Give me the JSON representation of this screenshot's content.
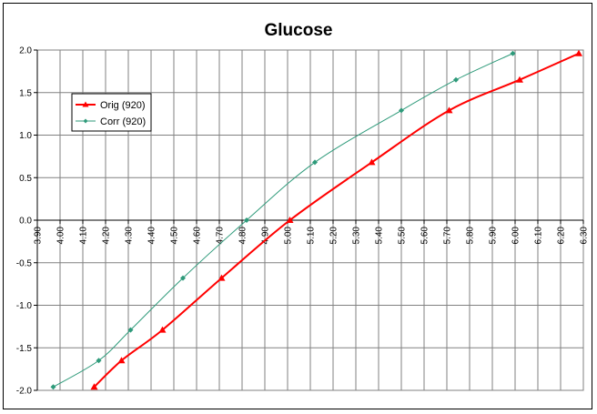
{
  "chart_data": {
    "type": "line",
    "title": "Glucose",
    "xlabel": "",
    "ylabel": "",
    "xlim": [
      3.9,
      6.3
    ],
    "ylim": [
      -2.0,
      2.0
    ],
    "x_ticks": [
      "3.90",
      "4.00",
      "4.10",
      "4.20",
      "4.30",
      "4.40",
      "4.50",
      "4.60",
      "4.70",
      "4.80",
      "4.90",
      "5.00",
      "5.10",
      "5.20",
      "5.30",
      "5.40",
      "5.50",
      "5.60",
      "5.70",
      "5.80",
      "5.90",
      "6.00",
      "6.10",
      "6.20",
      "6.30"
    ],
    "y_ticks": [
      "2.0",
      "1.5",
      "1.0",
      "0.5",
      "0.0",
      "-0.5",
      "-1.0",
      "-1.5",
      "-2.0"
    ],
    "grid": true,
    "legend_position": "left",
    "series": [
      {
        "name": "Orig (920)",
        "color": "#ff0000",
        "marker": "triangle",
        "points": [
          {
            "x": 4.15,
            "y": -1.96
          },
          {
            "x": 4.27,
            "y": -1.65
          },
          {
            "x": 4.45,
            "y": -1.29
          },
          {
            "x": 4.71,
            "y": -0.68
          },
          {
            "x": 5.01,
            "y": 0.0
          },
          {
            "x": 5.37,
            "y": 0.68
          },
          {
            "x": 5.71,
            "y": 1.29
          },
          {
            "x": 6.02,
            "y": 1.65
          },
          {
            "x": 6.28,
            "y": 1.96
          }
        ]
      },
      {
        "name": "Corr (920)",
        "color": "#2e9a7a",
        "marker": "diamond",
        "points": [
          {
            "x": 3.97,
            "y": -1.96
          },
          {
            "x": 4.17,
            "y": -1.65
          },
          {
            "x": 4.31,
            "y": -1.29
          },
          {
            "x": 4.54,
            "y": -0.68
          },
          {
            "x": 4.82,
            "y": 0.0
          },
          {
            "x": 5.12,
            "y": 0.68
          },
          {
            "x": 5.5,
            "y": 1.29
          },
          {
            "x": 5.74,
            "y": 1.65
          },
          {
            "x": 5.99,
            "y": 1.96
          }
        ]
      }
    ]
  }
}
